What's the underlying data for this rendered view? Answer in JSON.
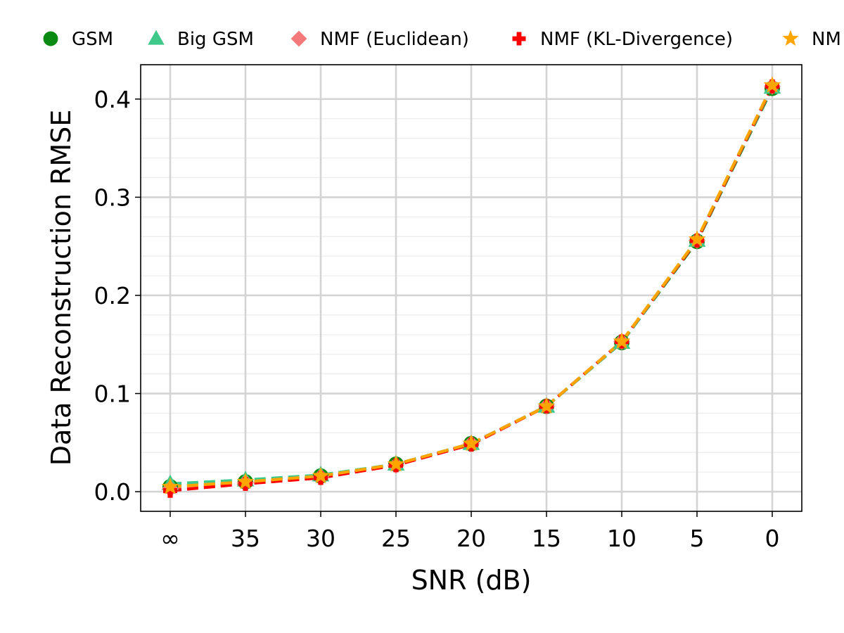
{
  "chart_data": {
    "type": "line",
    "title": "",
    "xlabel": "SNR (dB)",
    "ylabel": "Data Reconstruction RMSE",
    "x_tick_labels": [
      "∞",
      "35",
      "30",
      "25",
      "20",
      "15",
      "10",
      "5",
      "0"
    ],
    "y_ticks": [
      0.0,
      0.1,
      0.2,
      0.3,
      0.4
    ],
    "y_tick_labels": [
      "0.0",
      "0.1",
      "0.2",
      "0.3",
      "0.4"
    ],
    "ylim": [
      -0.02,
      0.435
    ],
    "grid": true,
    "legend_position": "top (above plot, clipped at right)",
    "series": [
      {
        "name": "GSM",
        "marker": "circle",
        "color": "#0a8a12",
        "values": [
          0.005,
          0.01,
          0.016,
          0.028,
          0.049,
          0.087,
          0.152,
          0.255,
          0.411
        ]
      },
      {
        "name": "Big GSM",
        "marker": "triangle",
        "color": "#3ec98a",
        "values": [
          0.008,
          0.012,
          0.017,
          0.028,
          0.049,
          0.087,
          0.152,
          0.256,
          0.412
        ]
      },
      {
        "name": "NMF (Euclidean)",
        "marker": "diamond",
        "color": "#f47a7a",
        "values": [
          0.003,
          0.009,
          0.015,
          0.027,
          0.049,
          0.087,
          0.153,
          0.256,
          0.413
        ]
      },
      {
        "name": "NMF (KL-Divergence)",
        "marker": "plus",
        "color": "#ff0000",
        "values": [
          0.001,
          0.008,
          0.014,
          0.027,
          0.048,
          0.087,
          0.153,
          0.256,
          0.413
        ]
      },
      {
        "name": "NM",
        "marker": "star",
        "color": "#ffa500",
        "values": [
          0.005,
          0.01,
          0.016,
          0.028,
          0.049,
          0.087,
          0.153,
          0.257,
          0.414
        ]
      }
    ]
  }
}
